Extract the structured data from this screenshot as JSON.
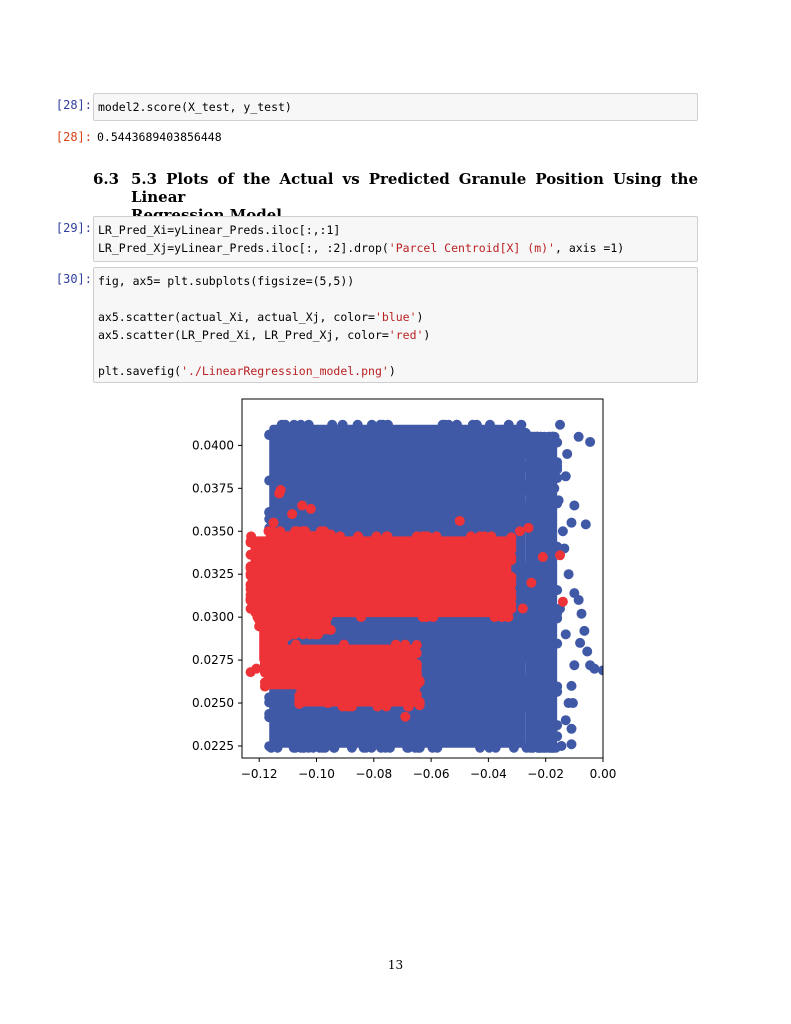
{
  "cells": {
    "c28": {
      "prompt": "[28]:",
      "code": "model2.score(X_test, y_test)",
      "out_prompt": "[28]:",
      "output": "0.5443689403856448"
    },
    "heading": {
      "number": "6.3",
      "line1": "5.3 Plots of the Actual vs Predicted Granule Position Using the Linear",
      "line2": "Regression Model"
    },
    "c29": {
      "prompt": "[29]:",
      "line1": "LR_Pred_Xi=yLinear_Preds.iloc[:,:1]",
      "line2_a": "LR_Pred_Xj=yLinear_Preds.iloc[:, :2].drop(",
      "line2_str": "'Parcel Centroid[X] (m)'",
      "line2_b": ", axis =1)"
    },
    "c30": {
      "prompt": "[30]:",
      "line1": "fig, ax5= plt.subplots(figsize=(5,5))",
      "line3_a": "ax5.scatter(actual_Xi, actual_Xj, color=",
      "line3_str": "'blue'",
      "line3_b": ")",
      "line4_a": "ax5.scatter(LR_Pred_Xi, LR_Pred_Xj, color=",
      "line4_str": "'red'",
      "line4_b": ")",
      "line6_a": "plt.savefig(",
      "line6_str": "'./LinearRegression_model.png'",
      "line6_b": ")"
    }
  },
  "chart_data": {
    "type": "scatter",
    "title": "",
    "xlabel": "",
    "ylabel": "",
    "xlim": [
      -0.126,
      0.0
    ],
    "ylim": [
      0.0218,
      0.0427
    ],
    "xticks": [
      "−0.12",
      "−0.10",
      "−0.08",
      "−0.06",
      "−0.04",
      "−0.02",
      "0.00"
    ],
    "xtick_values": [
      -0.12,
      -0.1,
      -0.08,
      -0.06,
      -0.04,
      -0.02,
      0.0
    ],
    "yticks": [
      "0.0225",
      "0.0250",
      "0.0275",
      "0.0300",
      "0.0325",
      "0.0350",
      "0.0375",
      "0.0400"
    ],
    "ytick_values": [
      0.0225,
      0.025,
      0.0275,
      0.03,
      0.0325,
      0.035,
      0.0375,
      0.04
    ],
    "grid": false,
    "series": [
      {
        "color": "#4059a6",
        "regions": [
          {
            "x": [
              -0.1165,
              -0.027
            ],
            "y": [
              0.0224,
              0.0412
            ]
          },
          {
            "x": [
              -0.027,
              -0.016
            ],
            "y": [
              0.0224,
              0.0405
            ]
          }
        ],
        "points": [
          {
            "x": -0.0045,
            "y": 0.0402
          },
          {
            "x": -0.0085,
            "y": 0.0405
          },
          {
            "x": -0.0125,
            "y": 0.0395
          },
          {
            "x": -0.016,
            "y": 0.0388
          },
          {
            "x": -0.013,
            "y": 0.0382
          },
          {
            "x": -0.01,
            "y": 0.0365
          },
          {
            "x": -0.0155,
            "y": 0.0368
          },
          {
            "x": -0.014,
            "y": 0.035
          },
          {
            "x": -0.006,
            "y": 0.0354
          },
          {
            "x": -0.011,
            "y": 0.0355
          },
          {
            "x": -0.0135,
            "y": 0.034
          },
          {
            "x": -0.012,
            "y": 0.0325
          },
          {
            "x": -0.01,
            "y": 0.0314
          },
          {
            "x": -0.0075,
            "y": 0.0302
          },
          {
            "x": -0.0085,
            "y": 0.031
          },
          {
            "x": -0.0065,
            "y": 0.0292
          },
          {
            "x": -0.013,
            "y": 0.029
          },
          {
            "x": -0.008,
            "y": 0.0285
          },
          {
            "x": -0.0055,
            "y": 0.028
          },
          {
            "x": -0.01,
            "y": 0.0272
          },
          {
            "x": -0.003,
            "y": 0.027
          },
          {
            "x": -0.0045,
            "y": 0.0272
          },
          {
            "x": 0.0,
            "y": 0.0269
          },
          {
            "x": -0.011,
            "y": 0.026
          },
          {
            "x": -0.012,
            "y": 0.025
          },
          {
            "x": -0.0105,
            "y": 0.025
          },
          {
            "x": -0.013,
            "y": 0.024
          },
          {
            "x": -0.011,
            "y": 0.0235
          },
          {
            "x": -0.0145,
            "y": 0.0225
          },
          {
            "x": -0.011,
            "y": 0.0226
          },
          {
            "x": -0.0175,
            "y": 0.0235
          },
          {
            "x": -0.015,
            "y": 0.0412
          },
          {
            "x": -0.0195,
            "y": 0.04
          },
          {
            "x": -0.017,
            "y": 0.0375
          },
          {
            "x": -0.0205,
            "y": 0.036
          },
          {
            "x": -0.015,
            "y": 0.0305
          }
        ]
      },
      {
        "color": "#ee3338",
        "regions": [
          {
            "x": [
              -0.123,
              -0.032
            ],
            "y": [
              0.03,
              0.0347
            ]
          },
          {
            "x": [
              -0.117,
              -0.095
            ],
            "y": [
              0.029,
              0.035
            ]
          },
          {
            "x": [
              -0.12,
              -0.11
            ],
            "y": [
              0.0273,
              0.0335
            ]
          },
          {
            "x": [
              -0.118,
              -0.065
            ],
            "y": [
              0.0258,
              0.0284
            ]
          },
          {
            "x": [
              -0.106,
              -0.064
            ],
            "y": [
              0.0248,
              0.0268
            ]
          }
        ],
        "points": [
          {
            "x": -0.1125,
            "y": 0.0374
          },
          {
            "x": -0.113,
            "y": 0.0372
          },
          {
            "x": -0.105,
            "y": 0.0365
          },
          {
            "x": -0.102,
            "y": 0.0363
          },
          {
            "x": -0.1085,
            "y": 0.036
          },
          {
            "x": -0.115,
            "y": 0.0355
          },
          {
            "x": -0.05,
            "y": 0.0356
          },
          {
            "x": -0.026,
            "y": 0.0352
          },
          {
            "x": -0.029,
            "y": 0.035
          },
          {
            "x": -0.015,
            "y": 0.0336
          },
          {
            "x": -0.021,
            "y": 0.0335
          },
          {
            "x": -0.025,
            "y": 0.032
          },
          {
            "x": -0.014,
            "y": 0.0309
          },
          {
            "x": -0.028,
            "y": 0.0305
          },
          {
            "x": -0.121,
            "y": 0.027
          },
          {
            "x": -0.123,
            "y": 0.0268
          },
          {
            "x": -0.106,
            "y": 0.0252
          },
          {
            "x": -0.096,
            "y": 0.025
          },
          {
            "x": -0.089,
            "y": 0.0248
          },
          {
            "x": -0.069,
            "y": 0.0242
          },
          {
            "x": -0.065,
            "y": 0.0255
          },
          {
            "x": -0.066,
            "y": 0.0265
          },
          {
            "x": -0.11,
            "y": 0.028
          },
          {
            "x": -0.1,
            "y": 0.0292
          }
        ]
      }
    ]
  },
  "page": {
    "number": "13"
  }
}
